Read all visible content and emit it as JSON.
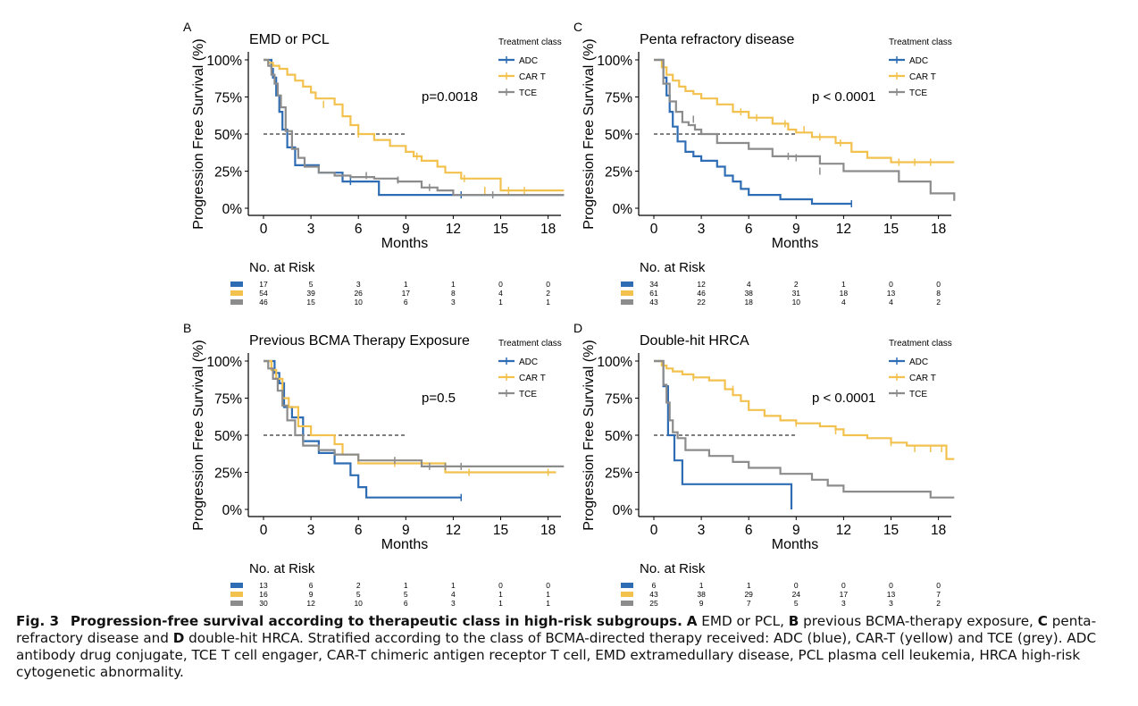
{
  "colors": {
    "ADC": "#2e6db4",
    "CAR T": "#f2c14e",
    "TCE": "#8c8c8c"
  },
  "axis": {
    "ylabel": "Progression Free Survival (%)",
    "xlabel": "Months",
    "xticks": [
      "0",
      "3",
      "6",
      "9",
      "12",
      "15",
      "18"
    ],
    "yticks": [
      "0%",
      "25%",
      "50%",
      "75%",
      "100%"
    ]
  },
  "legend_title": "Treatment class",
  "risk_title": "No. at Risk",
  "caption": {
    "fig_number": "Fig. 3",
    "title": "Progression-free survival according to therapeutic class in high-risk subgroups.",
    "p1": "A",
    "t1": "EMD or PCL,",
    "p2": "B",
    "t2": "previous BCMA-therapy exposure,",
    "p3": "C",
    "t3": "penta-refractory disease and",
    "p4": "D",
    "t4": "double-hit HRCA. Stratified according to the class of BCMA-directed therapy received: ADC (blue), CAR-T (yellow) and TCE (grey). ADC antibody drug conjugate, TCE T cell engager, CAR-T chimeric antigen receptor T cell, EMD extramedullary disease, PCL plasma cell leukemia, HRCA high-risk cytogenetic abnormality."
  },
  "chart_data": [
    {
      "type": "line",
      "panel": "A",
      "title": "EMD or PCL",
      "pvalue": "p=0.0018",
      "xlabel": "Months",
      "ylabel": "Progression Free Survival (%)",
      "xlim": [
        0,
        19
      ],
      "ylim": [
        0,
        100
      ],
      "grid": false,
      "legend_position": "top-right",
      "series": [
        {
          "name": "ADC",
          "x": [
            0,
            0.5,
            0.6,
            0.8,
            1.0,
            1.2,
            1.5,
            2.0,
            3.5,
            5.0,
            7.3,
            19
          ],
          "y": [
            100,
            94,
            88,
            76,
            65,
            53,
            41,
            29,
            24,
            18,
            9,
            9
          ],
          "censored": [
            [
              5.5,
              18
            ],
            [
              12.5,
              9
            ]
          ]
        },
        {
          "name": "CAR T",
          "x": [
            0,
            0.3,
            0.6,
            1.0,
            1.5,
            2.0,
            2.5,
            3.0,
            3.3,
            4.5,
            5.0,
            5.5,
            6.0,
            7.0,
            8.0,
            9.0,
            9.5,
            10.0,
            11.0,
            11.5,
            12.5,
            15.0,
            19
          ],
          "y": [
            100,
            98,
            96,
            94,
            90,
            86,
            82,
            78,
            74,
            70,
            62,
            56,
            50,
            46,
            42,
            38,
            35,
            32,
            28,
            24,
            20,
            12,
            12
          ],
          "censored": [
            [
              3.8,
              70
            ],
            [
              6.0,
              50
            ],
            [
              9.7,
              35
            ],
            [
              12.7,
              20
            ],
            [
              14.0,
              12
            ],
            [
              15.5,
              12
            ],
            [
              16.5,
              12
            ]
          ]
        },
        {
          "name": "TCE",
          "x": [
            0,
            0.3,
            0.5,
            0.7,
            0.9,
            1.1,
            1.4,
            1.8,
            2.2,
            2.6,
            3.5,
            4.5,
            5.5,
            7.0,
            8.5,
            10.0,
            11.0,
            12.0,
            19
          ],
          "y": [
            100,
            96,
            90,
            84,
            76,
            68,
            52,
            40,
            34,
            28,
            24,
            22,
            21,
            20,
            18,
            14,
            12,
            9,
            9
          ],
          "censored": [
            [
              6.5,
              22
            ],
            [
              8.5,
              19
            ],
            [
              10.5,
              14
            ],
            [
              14.5,
              9
            ]
          ]
        }
      ],
      "risk_table": {
        "ADC": [
          "17",
          "5",
          "3",
          "1",
          "1",
          "0",
          "0"
        ],
        "CAR T": [
          "54",
          "39",
          "26",
          "17",
          "8",
          "4",
          "2"
        ],
        "TCE": [
          "46",
          "15",
          "10",
          "6",
          "3",
          "1",
          "1"
        ]
      }
    },
    {
      "type": "line",
      "panel": "B",
      "title": "Previous BCMA Therapy Exposure",
      "pvalue": "p=0.5",
      "xlabel": "Months",
      "ylabel": "Progression Free Survival (%)",
      "xlim": [
        0,
        19
      ],
      "ylim": [
        0,
        100
      ],
      "grid": false,
      "legend_position": "top-right",
      "series": [
        {
          "name": "ADC",
          "x": [
            0,
            0.7,
            1.0,
            1.3,
            1.8,
            2.5,
            3.5,
            4.5,
            5.5,
            6.0,
            6.5,
            12.5
          ],
          "y": [
            100,
            92,
            85,
            69,
            62,
            46,
            38,
            31,
            23,
            15,
            8,
            8
          ],
          "censored": [
            [
              12.5,
              8
            ]
          ]
        },
        {
          "name": "CAR T",
          "x": [
            0,
            0.5,
            0.8,
            1.2,
            1.6,
            2.2,
            3.0,
            4.5,
            5.0,
            6.0,
            8.5,
            11.5,
            18.5
          ],
          "y": [
            100,
            94,
            88,
            75,
            69,
            56,
            50,
            44,
            37,
            31,
            31,
            25,
            25
          ],
          "censored": [
            [
              8.3,
              31
            ],
            [
              13.0,
              25
            ],
            [
              18.0,
              25
            ]
          ]
        },
        {
          "name": "TCE",
          "x": [
            0,
            0.3,
            0.6,
            0.9,
            1.2,
            1.5,
            2.0,
            2.5,
            3.5,
            4.5,
            6.0,
            8.5,
            10.0,
            19
          ],
          "y": [
            100,
            95,
            88,
            80,
            70,
            60,
            50,
            43,
            40,
            37,
            33,
            33,
            29,
            29
          ],
          "censored": [
            [
              8.3,
              33
            ],
            [
              10.5,
              29
            ],
            [
              11.5,
              29
            ],
            [
              12.5,
              29
            ]
          ]
        }
      ],
      "risk_table": {
        "ADC": [
          "13",
          "6",
          "2",
          "1",
          "1",
          "0",
          "0"
        ],
        "CAR T": [
          "16",
          "9",
          "5",
          "5",
          "4",
          "1",
          "1"
        ],
        "TCE": [
          "30",
          "12",
          "10",
          "6",
          "3",
          "1",
          "1"
        ]
      }
    },
    {
      "type": "line",
      "panel": "C",
      "title": "Penta refractory disease",
      "pvalue": "p < 0.0001",
      "xlabel": "Months",
      "ylabel": "Progression Free Survival (%)",
      "xlim": [
        0,
        19
      ],
      "ylim": [
        0,
        100
      ],
      "grid": false,
      "legend_position": "top-right",
      "series": [
        {
          "name": "ADC",
          "x": [
            0,
            0.6,
            0.8,
            1.0,
            1.2,
            1.5,
            2.0,
            2.5,
            3.0,
            4.0,
            4.5,
            5.0,
            5.5,
            6.0,
            8.0,
            10.0,
            12.5
          ],
          "y": [
            100,
            88,
            76,
            65,
            55,
            45,
            38,
            35,
            32,
            28,
            22,
            18,
            13,
            9,
            6,
            3,
            3
          ],
          "censored": [
            [
              12.5,
              3
            ]
          ]
        },
        {
          "name": "CAR T",
          "x": [
            0,
            0.5,
            0.8,
            1.2,
            1.6,
            2.0,
            2.5,
            3.0,
            4.0,
            5.0,
            6.0,
            7.5,
            8.5,
            9.0,
            10.0,
            11.5,
            12.5,
            13.5,
            15.0,
            19
          ],
          "y": [
            100,
            95,
            90,
            86,
            82,
            79,
            77,
            74,
            70,
            65,
            61,
            57,
            53,
            51,
            48,
            44,
            38,
            34,
            31,
            31
          ],
          "censored": [
            [
              5.5,
              65
            ],
            [
              6.5,
              61
            ],
            [
              8.3,
              57
            ],
            [
              9.5,
              53
            ],
            [
              10.5,
              48
            ],
            [
              11.8,
              44
            ],
            [
              15.5,
              31
            ],
            [
              16.5,
              31
            ],
            [
              17.5,
              31
            ]
          ]
        },
        {
          "name": "TCE",
          "x": [
            0,
            0.6,
            1.0,
            1.4,
            1.8,
            2.2,
            2.6,
            3.0,
            4.0,
            6.0,
            7.5,
            10.5,
            12.0,
            15.5,
            17.5,
            19
          ],
          "y": [
            100,
            84,
            72,
            65,
            58,
            56,
            53,
            50,
            44,
            40,
            35,
            30,
            25,
            18,
            10,
            5
          ],
          "censored": [
            [
              2.5,
              60
            ],
            [
              8.5,
              35
            ],
            [
              9.0,
              34
            ],
            [
              10.5,
              25
            ]
          ]
        }
      ],
      "risk_table": {
        "ADC": [
          "34",
          "12",
          "4",
          "2",
          "1",
          "0",
          "0"
        ],
        "CAR T": [
          "61",
          "46",
          "38",
          "31",
          "18",
          "13",
          "8"
        ],
        "TCE": [
          "43",
          "22",
          "18",
          "10",
          "4",
          "4",
          "2"
        ]
      }
    },
    {
      "type": "line",
      "panel": "D",
      "title": "Double-hit HRCA",
      "pvalue": "p < 0.0001",
      "xlabel": "Months",
      "ylabel": "Progression Free Survival (%)",
      "xlim": [
        0,
        19
      ],
      "ylim": [
        0,
        100
      ],
      "grid": false,
      "legend_position": "top-right",
      "series": [
        {
          "name": "ADC",
          "x": [
            0,
            0.6,
            0.9,
            1.3,
            1.8,
            8.7,
            8.7
          ],
          "y": [
            100,
            83,
            50,
            33,
            17,
            17,
            0
          ],
          "censored": []
        },
        {
          "name": "CAR T",
          "x": [
            0,
            0.5,
            0.8,
            1.2,
            1.8,
            2.5,
            3.5,
            4.5,
            5.0,
            5.5,
            6.0,
            7.0,
            8.0,
            9.0,
            10.5,
            11.5,
            12.0,
            13.5,
            15.0,
            16.0,
            18.5,
            19
          ],
          "y": [
            100,
            97,
            95,
            93,
            91,
            89,
            87,
            81,
            77,
            73,
            67,
            63,
            60,
            58,
            56,
            54,
            50,
            48,
            45,
            43,
            34,
            34
          ],
          "censored": [
            [
              2.5,
              89
            ],
            [
              5.0,
              81
            ],
            [
              9.0,
              58
            ],
            [
              11.5,
              53
            ],
            [
              15.0,
              45
            ],
            [
              16.5,
              41
            ],
            [
              17.5,
              41
            ],
            [
              18.2,
              41
            ]
          ]
        },
        {
          "name": "TCE",
          "x": [
            0,
            0.6,
            0.8,
            1.0,
            1.2,
            1.5,
            2.0,
            3.5,
            5.0,
            6.0,
            8.0,
            10.0,
            11.0,
            12.0,
            17.5,
            19
          ],
          "y": [
            100,
            84,
            72,
            60,
            52,
            48,
            40,
            36,
            32,
            28,
            24,
            20,
            16,
            12,
            8,
            8
          ],
          "censored": []
        }
      ],
      "risk_table": {
        "ADC": [
          "6",
          "1",
          "1",
          "0",
          "0",
          "0",
          "0"
        ],
        "CAR T": [
          "43",
          "38",
          "29",
          "24",
          "17",
          "13",
          "7"
        ],
        "TCE": [
          "25",
          "9",
          "7",
          "5",
          "3",
          "3",
          "2"
        ]
      }
    }
  ]
}
